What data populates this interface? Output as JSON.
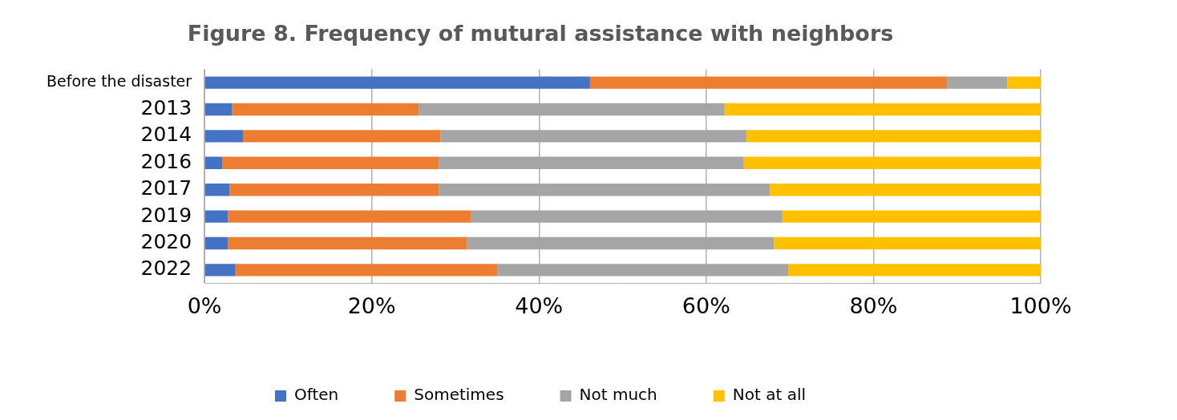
{
  "chart_data": {
    "type": "bar",
    "title": "Figure 8. Frequency of mutural assistance with neighbors",
    "orientation": "horizontal",
    "stacked": true,
    "grid": true,
    "legend": "bottom",
    "categories": [
      "Before the disaster",
      "2013",
      "2014",
      "2016",
      "2017",
      "2019",
      "2020",
      "2022"
    ],
    "series": [
      {
        "name": "Often",
        "color": "#4472c4",
        "values": [
          46.1,
          3.3,
          4.6,
          2.1,
          3.0,
          2.8,
          2.8,
          3.7
        ]
      },
      {
        "name": "Sometimes",
        "color": "#ed7d31",
        "values": [
          42.7,
          22.3,
          23.6,
          25.9,
          25.0,
          29.1,
          28.6,
          31.3
        ]
      },
      {
        "name": "Not much",
        "color": "#a5a5a5",
        "values": [
          7.2,
          36.6,
          36.6,
          36.5,
          39.6,
          37.2,
          36.7,
          34.8
        ]
      },
      {
        "name": "Not at all",
        "color": "#ffc000",
        "values": [
          4.0,
          37.8,
          35.2,
          35.5,
          32.4,
          30.9,
          31.9,
          30.2
        ]
      }
    ],
    "xlim": [
      0,
      100
    ],
    "xticks": [
      {
        "value": 0,
        "label": "0%"
      },
      {
        "value": 20,
        "label": "20%"
      },
      {
        "value": 40,
        "label": "40%"
      },
      {
        "value": 60,
        "label": "60%"
      },
      {
        "value": 80,
        "label": "80%"
      },
      {
        "value": 100,
        "label": "100%"
      }
    ]
  }
}
